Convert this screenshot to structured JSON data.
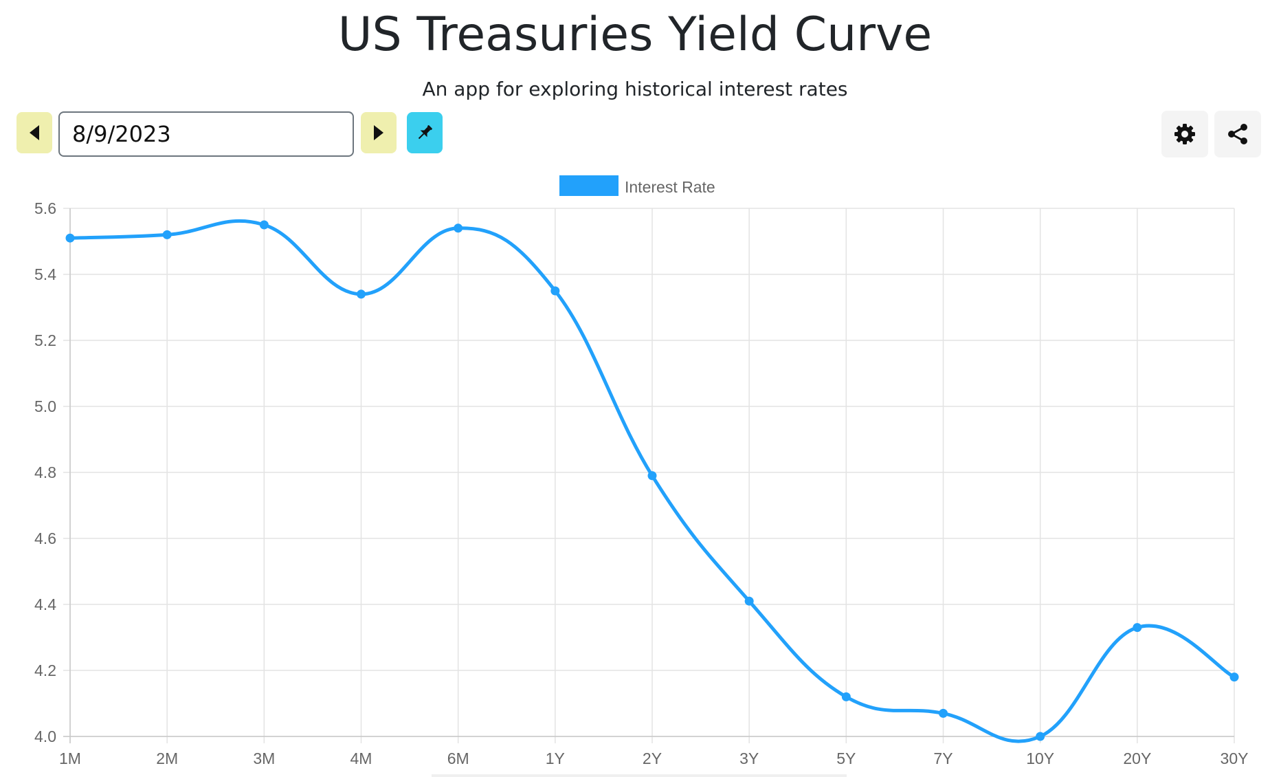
{
  "header": {
    "title": "US Treasuries Yield Curve",
    "subtitle": "An app for exploring historical interest rates"
  },
  "toolbar": {
    "date_value": "8/9/2023",
    "prev_icon": "caret-left-icon",
    "next_icon": "caret-right-icon",
    "pin_icon": "pin-icon",
    "settings_icon": "gear-icon",
    "share_icon": "share-icon"
  },
  "colors": {
    "series": "#22a1fb",
    "nav_button": "#efefae",
    "pin_button": "#3bcfee",
    "grid": "#e3e3e3",
    "tick_text": "#666666"
  },
  "chart_data": {
    "type": "line",
    "categories": [
      "1M",
      "2M",
      "3M",
      "4M",
      "6M",
      "1Y",
      "2Y",
      "3Y",
      "5Y",
      "7Y",
      "10Y",
      "20Y",
      "30Y"
    ],
    "series": [
      {
        "name": "Interest Rate",
        "values": [
          5.51,
          5.52,
          5.55,
          5.34,
          5.54,
          5.35,
          4.79,
          4.41,
          4.12,
          4.07,
          4.0,
          4.33,
          4.18
        ]
      }
    ],
    "ylim": [
      4.0,
      5.6
    ],
    "yticks": [
      "5.6",
      "5.4",
      "5.2",
      "5.0",
      "4.8",
      "4.6",
      "4.4",
      "4.2",
      "4.0"
    ],
    "grid": true,
    "legend": "top-center",
    "smooth": true
  }
}
